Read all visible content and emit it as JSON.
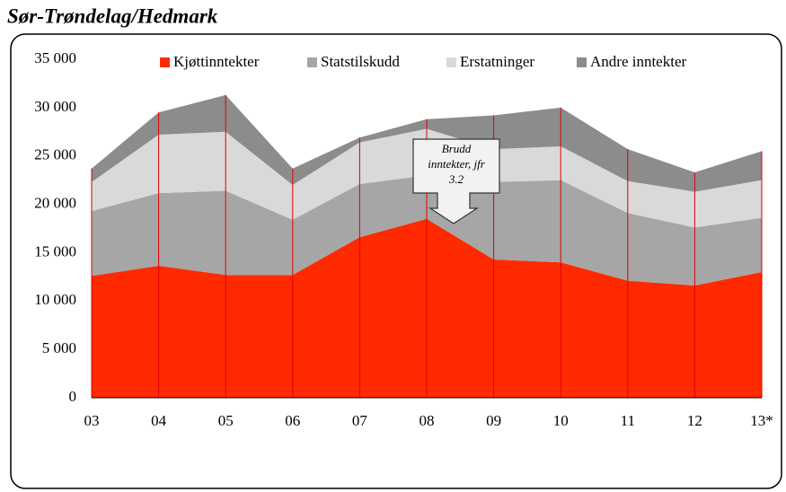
{
  "chart_data": {
    "type": "stacked_area",
    "title": "Sør-Trøndelag/Hedmark",
    "categories": [
      "03",
      "04",
      "05",
      "06",
      "07",
      "08",
      "09",
      "10",
      "11",
      "12",
      "13*"
    ],
    "series": [
      {
        "name": "Kjøttinntekter",
        "color": "#ff2a00",
        "values": [
          12600,
          13650,
          12700,
          12700,
          16600,
          18500,
          14300,
          14000,
          12100,
          11600,
          13000
        ]
      },
      {
        "name": "Statstilskudd",
        "color": "#a6a6a6",
        "values": [
          6700,
          7500,
          8700,
          5700,
          5500,
          4500,
          8000,
          8500,
          7000,
          6000,
          5600
        ]
      },
      {
        "name": "Erstatninger",
        "color": "#d9d9d9",
        "values": [
          3000,
          6050,
          6100,
          3600,
          4300,
          4800,
          3400,
          3500,
          3300,
          3700,
          3900
        ]
      },
      {
        "name": "Andre inntekter",
        "color": "#8c8c8c",
        "values": [
          1400,
          2300,
          3800,
          1700,
          500,
          1000,
          3500,
          4000,
          3300,
          2000,
          3000
        ]
      }
    ],
    "ylim": [
      0,
      35000
    ],
    "yticks": [
      0,
      {
        "value": 5000,
        "label": "5 000"
      },
      {
        "value": 10000,
        "label": "10 000"
      },
      {
        "value": 15000,
        "label": "15 000"
      },
      {
        "value": 20000,
        "label": "20 000"
      },
      {
        "value": 25000,
        "label": "25 000"
      },
      {
        "value": 30000,
        "label": "30 000"
      },
      {
        "value": 35000,
        "label": "35 000"
      }
    ],
    "legend": "top",
    "annotation": [
      "Brudd",
      "inntekter, jfr",
      "3.2"
    ]
  }
}
